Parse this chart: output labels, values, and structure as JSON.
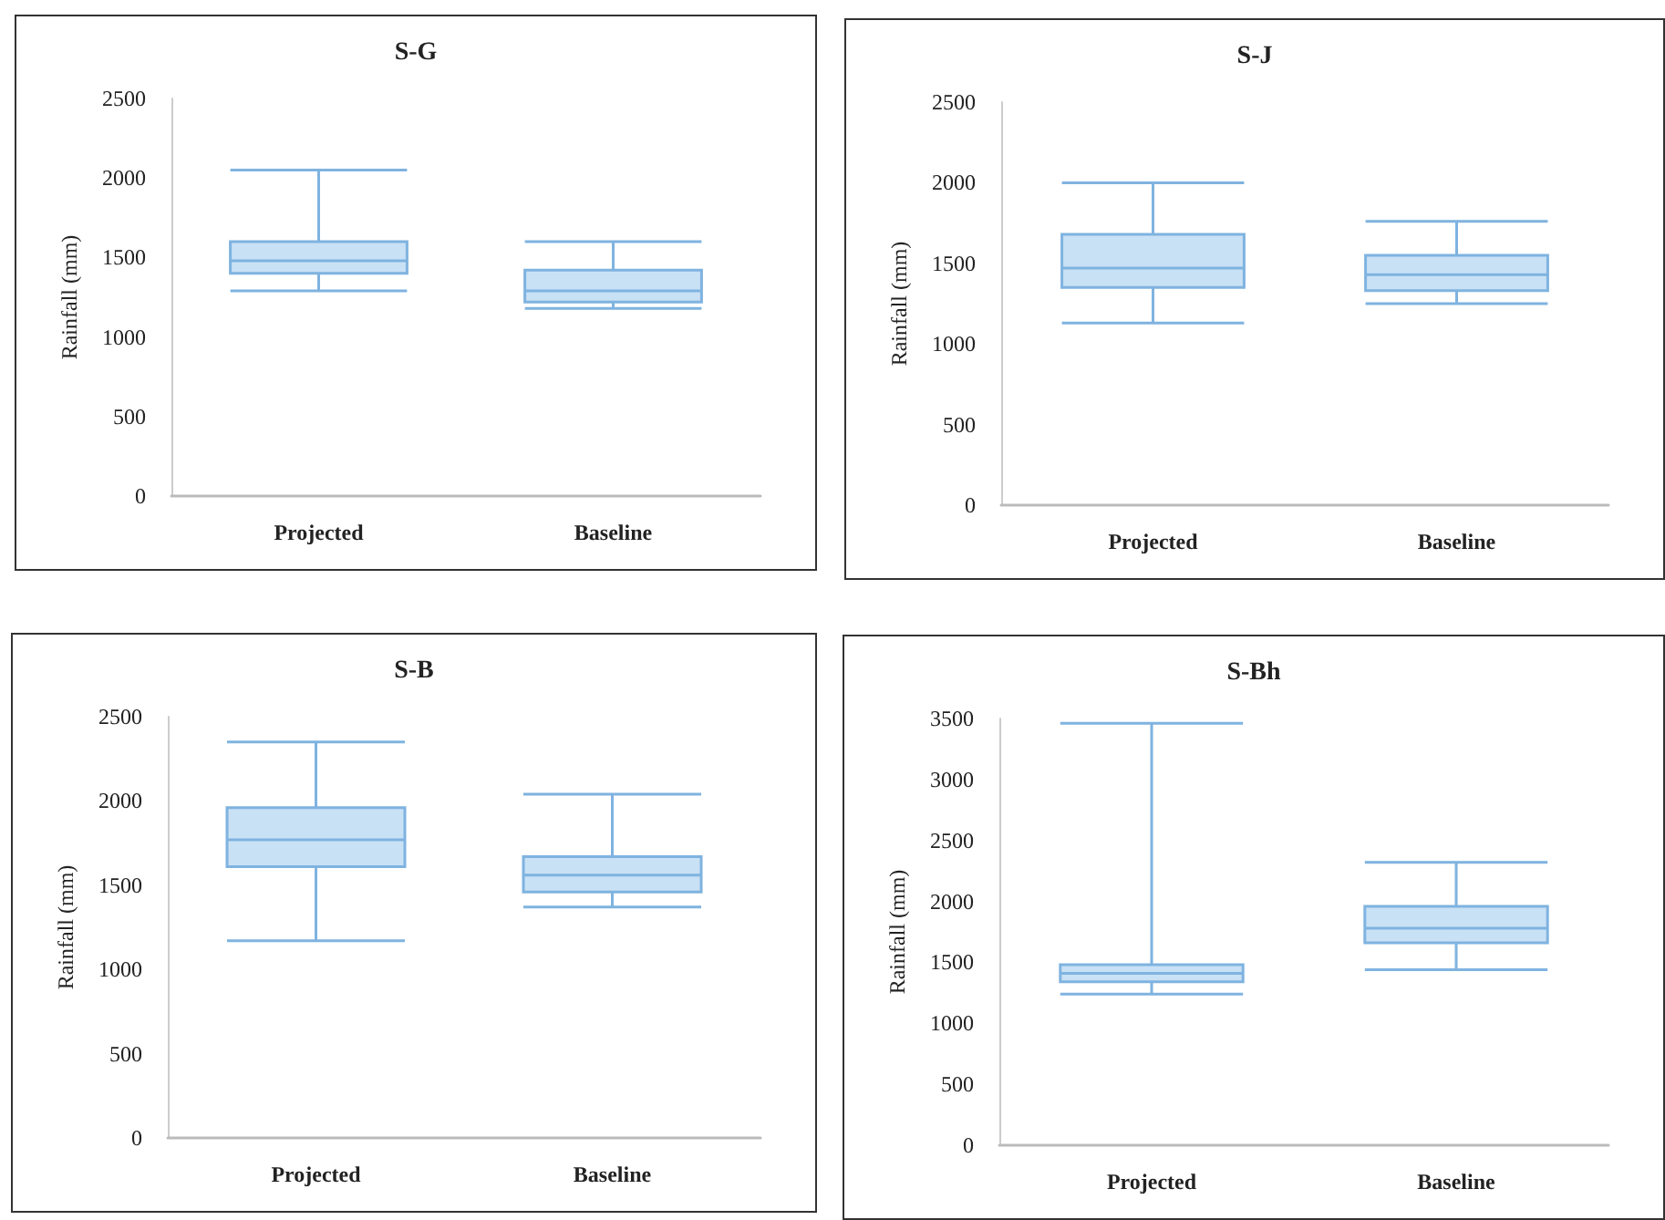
{
  "chart_data": [
    {
      "type": "box",
      "title": "S-G",
      "ylabel": "Rainfall (mm)",
      "categories": [
        "Projected",
        "Baseline"
      ],
      "color": "#c9e1f5",
      "ylim": [
        0,
        2500
      ],
      "yticks": [
        0,
        500,
        1000,
        1500,
        2000,
        2500
      ],
      "boxes": [
        {
          "low": 1290,
          "q1": 1400,
          "median": 1480,
          "q3": 1600,
          "high": 2050
        },
        {
          "low": 1180,
          "q1": 1220,
          "median": 1290,
          "q3": 1420,
          "high": 1600
        }
      ]
    },
    {
      "type": "box",
      "title": "S-J",
      "ylabel": "Rainfall (mm)",
      "categories": [
        "Projected",
        "Baseline"
      ],
      "color": "#c9e1f5",
      "ylim": [
        0,
        2500
      ],
      "yticks": [
        0,
        500,
        1000,
        1500,
        2000,
        2500
      ],
      "boxes": [
        {
          "low": 1130,
          "q1": 1350,
          "median": 1470,
          "q3": 1680,
          "high": 2000
        },
        {
          "low": 1250,
          "q1": 1330,
          "median": 1430,
          "q3": 1550,
          "high": 1760
        }
      ]
    },
    {
      "type": "box",
      "title": "S-B",
      "ylabel": "Rainfall (mm)",
      "categories": [
        "Projected",
        "Baseline"
      ],
      "color": "#c9e1f5",
      "ylim": [
        0,
        2500
      ],
      "yticks": [
        0,
        500,
        1000,
        1500,
        2000,
        2500
      ],
      "boxes": [
        {
          "low": 1170,
          "q1": 1610,
          "median": 1770,
          "q3": 1960,
          "high": 2350
        },
        {
          "low": 1370,
          "q1": 1460,
          "median": 1560,
          "q3": 1670,
          "high": 2040
        }
      ]
    },
    {
      "type": "box",
      "title": "S-Bh",
      "ylabel": "Rainfall (mm)",
      "categories": [
        "Projected",
        "Baseline"
      ],
      "color": "#c9e1f5",
      "ylim": [
        0,
        3500
      ],
      "yticks": [
        0,
        500,
        1000,
        1500,
        2000,
        2500,
        3000,
        3500
      ],
      "boxes": [
        {
          "low": 1240,
          "q1": 1340,
          "median": 1410,
          "q3": 1480,
          "high": 3460
        },
        {
          "low": 1440,
          "q1": 1660,
          "median": 1780,
          "q3": 1960,
          "high": 2320
        }
      ]
    }
  ]
}
